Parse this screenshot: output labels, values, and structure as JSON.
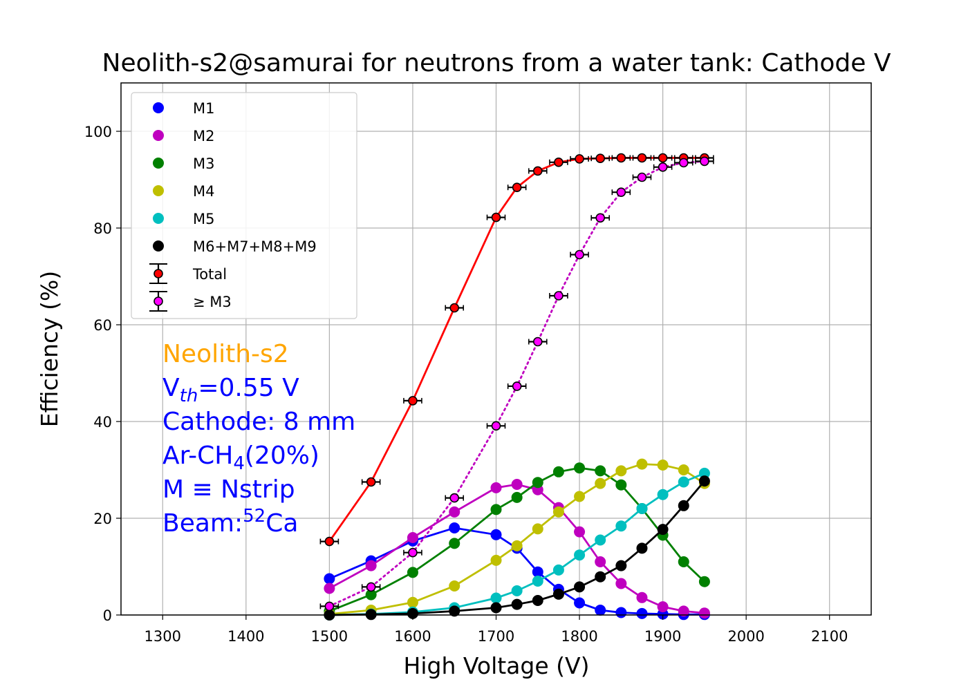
{
  "chart_data": {
    "type": "line",
    "title": "Neolith-s2@samurai for neutrons from a water tank: Cathode V",
    "xlabel": "High Voltage (V)",
    "ylabel": "Efficiency (%)",
    "xlim": [
      1250,
      2150
    ],
    "ylim": [
      0,
      110
    ],
    "xticks": [
      1300,
      1400,
      1500,
      1600,
      1700,
      1800,
      1900,
      2000,
      2100
    ],
    "yticks": [
      0,
      20,
      40,
      60,
      80,
      100
    ],
    "grid": true,
    "legend_position": "upper-left",
    "x": [
      1500,
      1550,
      1600,
      1650,
      1700,
      1725,
      1750,
      1775,
      1800,
      1825,
      1850,
      1875,
      1900,
      1925,
      1950
    ],
    "series": [
      {
        "name": "M1",
        "color": "#0000ff",
        "style": "solid",
        "marker": "circle",
        "values": [
          7.5,
          11.2,
          15.3,
          18.0,
          16.6,
          13.8,
          8.9,
          5.3,
          2.5,
          1.0,
          0.5,
          0.3,
          0.2,
          0.1,
          0.1
        ]
      },
      {
        "name": "M2",
        "color": "#bf00bf",
        "style": "solid",
        "marker": "circle",
        "values": [
          5.5,
          10.2,
          16.0,
          21.3,
          26.3,
          27.0,
          25.9,
          22.2,
          17.2,
          11.0,
          6.5,
          3.6,
          1.7,
          0.8,
          0.4
        ]
      },
      {
        "name": "M3",
        "color": "#008000",
        "style": "solid",
        "marker": "circle",
        "values": [
          0.8,
          4.2,
          8.8,
          14.8,
          21.8,
          24.3,
          27.4,
          29.6,
          30.4,
          29.8,
          26.9,
          22.0,
          16.5,
          11.0,
          6.9
        ]
      },
      {
        "name": "M4",
        "color": "#bfbf00",
        "style": "solid",
        "marker": "circle",
        "values": [
          0.2,
          1.0,
          2.6,
          6.0,
          11.3,
          14.3,
          17.8,
          21.3,
          24.5,
          27.2,
          29.8,
          31.2,
          31.0,
          30.0,
          27.2
        ]
      },
      {
        "name": "M5",
        "color": "#00bfbf",
        "style": "solid",
        "marker": "circle",
        "values": [
          0.0,
          0.2,
          0.6,
          1.5,
          3.5,
          5.0,
          7.0,
          9.3,
          12.4,
          15.5,
          18.4,
          22.0,
          24.9,
          27.5,
          29.3
        ]
      },
      {
        "name": "M6+M7+M8+M9",
        "color": "#000000",
        "style": "solid",
        "marker": "circle",
        "values": [
          0.0,
          0.1,
          0.3,
          0.8,
          1.5,
          2.2,
          3.0,
          4.3,
          5.8,
          7.9,
          10.2,
          13.8,
          17.7,
          22.6,
          27.7
        ]
      },
      {
        "name": "Total",
        "color": "#ff0000",
        "style": "solid",
        "marker": "circle-errorbar",
        "values": [
          15.2,
          27.5,
          44.3,
          63.5,
          82.2,
          88.4,
          91.8,
          93.6,
          94.3,
          94.4,
          94.5,
          94.5,
          94.5,
          94.5,
          94.5
        ]
      },
      {
        "name": "≥ M3",
        "color": "#bf00bf",
        "marker_fill": "#ff00ff",
        "style": "dotted",
        "marker": "circle-errorbar",
        "values": [
          1.8,
          5.8,
          12.9,
          24.2,
          39.1,
          47.3,
          56.5,
          66.0,
          74.5,
          82.1,
          87.4,
          90.5,
          92.6,
          93.5,
          93.8
        ]
      }
    ],
    "annotations": [
      {
        "text": "Neolith-s2",
        "color": "#ffa500"
      },
      {
        "parts": [
          "V",
          "th",
          "=0.55 V"
        ],
        "color": "#0000ff"
      },
      {
        "text": "Cathode: 8 mm",
        "color": "#0000ff"
      },
      {
        "parts": [
          "Ar-CH",
          "4",
          "(20%)"
        ],
        "color": "#0000ff"
      },
      {
        "text": "M ≡ Nstrip",
        "color": "#0000ff"
      },
      {
        "parts": [
          "Beam:",
          "52",
          "Ca"
        ],
        "color": "#0000ff"
      }
    ]
  }
}
